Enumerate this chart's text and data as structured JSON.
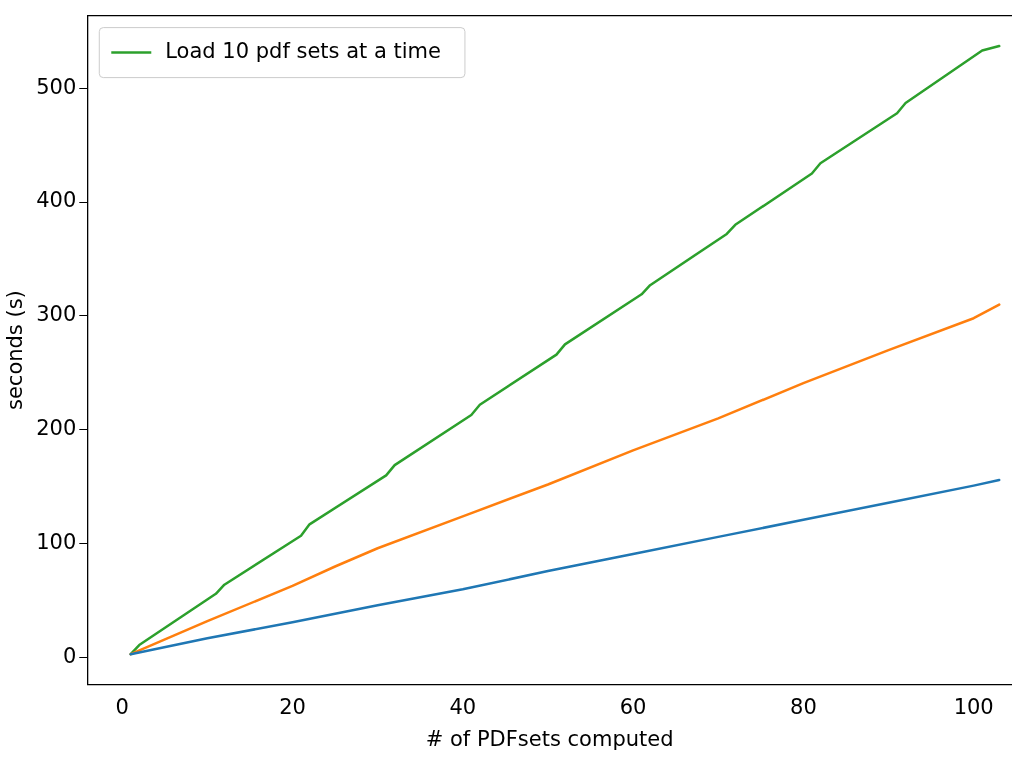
{
  "chart_data": {
    "type": "line",
    "xlabel": "# of PDFsets computed",
    "ylabel": "seconds (s)",
    "xlim": [
      -4.1,
      104.5
    ],
    "xticks": [
      0,
      20,
      40,
      60,
      80,
      100
    ],
    "ylim": [
      -23.7,
      563.7
    ],
    "yticks": [
      0,
      100,
      200,
      300,
      400,
      500
    ],
    "grid": false,
    "legend": "top left",
    "marker": "none",
    "line_style": "solid",
    "series": [
      {
        "color": "#1f77b4",
        "x": [
          1,
          10,
          20,
          30,
          40,
          50,
          60,
          70,
          80,
          90,
          100,
          103
        ],
        "values": [
          3,
          17,
          31,
          46,
          60,
          76,
          91,
          106,
          121,
          136,
          151,
          156
        ]
      },
      {
        "color": "#ff7f0e",
        "x": [
          1,
          10,
          20,
          25,
          30,
          40,
          50,
          60,
          70,
          80,
          90,
          100,
          103
        ],
        "values": [
          3,
          32,
          63,
          80,
          96,
          124,
          152,
          182,
          210,
          241,
          270,
          298,
          310
        ]
      },
      {
        "name": "Load 10 pdf sets at a time",
        "color": "#2ca02c",
        "x": [
          1,
          2,
          11,
          12,
          21,
          22,
          31,
          32,
          41,
          42,
          51,
          52,
          61,
          62,
          71,
          72,
          81,
          82,
          91,
          92,
          101,
          103
        ],
        "values": [
          3,
          11,
          56,
          64,
          107,
          117,
          160,
          169,
          213,
          222,
          266,
          275,
          319,
          327,
          372,
          380,
          425,
          434,
          478,
          487,
          533,
          537
        ]
      }
    ]
  }
}
